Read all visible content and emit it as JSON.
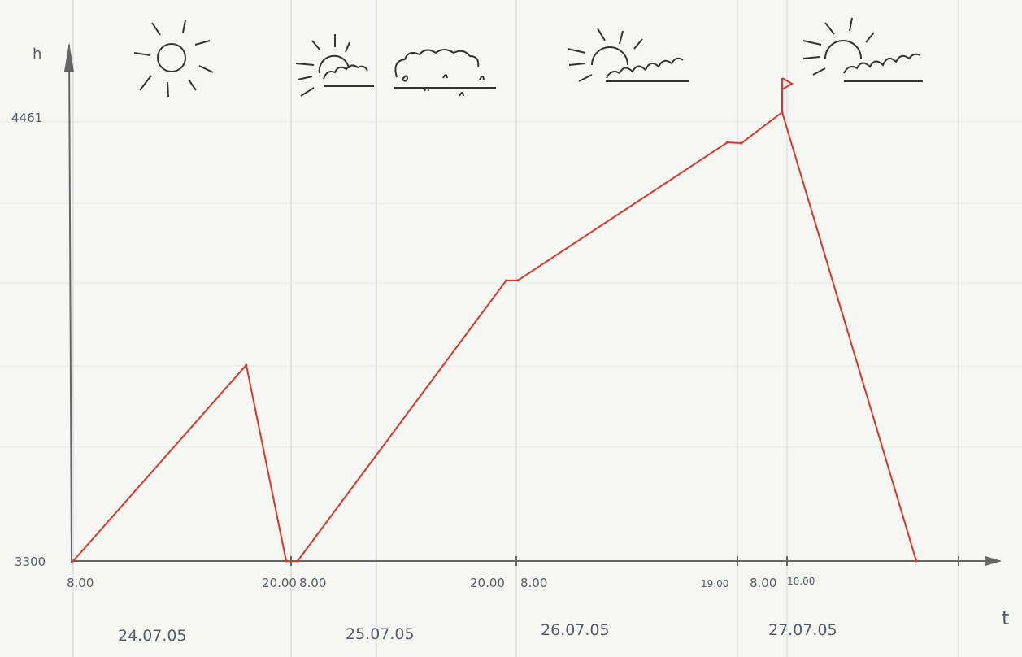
{
  "chart_data": {
    "type": "line",
    "title": "",
    "xlabel": "t",
    "ylabel": "h",
    "y_tick_labels": [
      "3300",
      "4461"
    ],
    "ylim": [
      3300,
      4461
    ],
    "x_tick_labels": [
      "8.00",
      "20.00",
      "8.00",
      "20.00",
      "8.00",
      "19.00",
      "8.00",
      "10.00"
    ],
    "date_labels": [
      "24.07.05",
      "25.07.05",
      "26.07.05",
      "27.07.05"
    ],
    "grid": true,
    "series": [
      {
        "color": "#d9352b",
        "points": [
          {
            "x": "24.07.05 08:00",
            "y": 3300
          },
          {
            "x": "24.07.05 17:45",
            "y": 3807
          },
          {
            "x": "24.07.05 20:00",
            "y": 3300
          },
          {
            "x": "25.07.05 08:00",
            "y": 3300
          },
          {
            "x": "25.07.05 19:40",
            "y": 4026
          },
          {
            "x": "26.07.05 08:00",
            "y": 4026
          },
          {
            "x": "26.07.05 18:30",
            "y": 4383
          },
          {
            "x": "27.07.05 08:00",
            "y": 4381
          },
          {
            "x": "27.07.05 10:00",
            "y": 4461
          },
          {
            "x": "27.07.05 16:00",
            "y": 3300
          }
        ]
      }
    ],
    "annotations": {
      "summit_marker": "flag-icon",
      "weather": [
        "sun-icon",
        "sun-behind-cloud-icon",
        "rain-cloud-icon",
        "sun-behind-cloud-icon",
        "sun-behind-cloud-icon"
      ]
    }
  }
}
